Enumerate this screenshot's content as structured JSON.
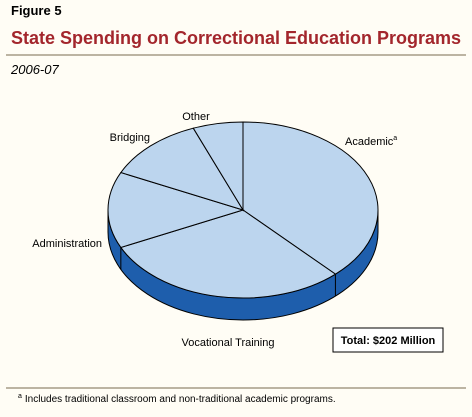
{
  "chart_data": {
    "type": "pie3d",
    "figure_label": "Figure 5",
    "title": "State Spending on Correctional Education Programs",
    "subtitle": "2006-07",
    "categories": [
      "Academic",
      "Vocational Training",
      "Administration",
      "Bridging",
      "Other"
    ],
    "values": [
      38,
      30,
      14,
      12,
      6
    ],
    "color": "#bcd5ee",
    "side_color": "#1e5eac",
    "category_marker": {
      "index": 0,
      "text": "a"
    },
    "annotation": "Total: $202 Million",
    "footnote": {
      "marker": "a",
      "text": "Includes traditional classroom and non-traditional academic programs."
    }
  }
}
